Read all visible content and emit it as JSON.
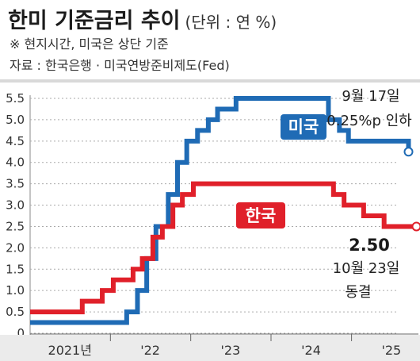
{
  "header": {
    "title": "한미 기준금리 추이",
    "unit": "(단위 : 연 %)",
    "note": "※ 현지시간, 미국은 상단 기준",
    "source": "자료 : 한국은행 · 미국연방준비제도(Fed)"
  },
  "chart_data": {
    "type": "line",
    "line_shape": "step",
    "title": "한미 기준금리 추이",
    "xlabel": "",
    "ylabel": "",
    "ylim": [
      0,
      5.5
    ],
    "yticks": [
      "0",
      "0.5",
      "1.0",
      "1.5",
      "2.0",
      "2.5",
      "3.0",
      "3.5",
      "4.0",
      "4.5",
      "5.0",
      "5.5"
    ],
    "xlim": [
      "2021-01-01",
      "2025-11-01"
    ],
    "xticks": [
      {
        "date": "2021-07-01",
        "label": "2021년"
      },
      {
        "date": "2022-07-01",
        "label": "'22"
      },
      {
        "date": "2023-07-01",
        "label": "'23"
      },
      {
        "date": "2024-07-01",
        "label": "'24"
      },
      {
        "date": "2025-07-01",
        "label": "'25"
      }
    ],
    "grid": "horizontal-dotted",
    "series": [
      {
        "name": "미국",
        "color": "#1f6bb5",
        "points": [
          {
            "x": "2021-01-01",
            "y": 0.25
          },
          {
            "x": "2022-03-16",
            "y": 0.5
          },
          {
            "x": "2022-05-04",
            "y": 1.0
          },
          {
            "x": "2022-06-15",
            "y": 1.75
          },
          {
            "x": "2022-07-27",
            "y": 2.5
          },
          {
            "x": "2022-09-21",
            "y": 3.25
          },
          {
            "x": "2022-11-02",
            "y": 4.0
          },
          {
            "x": "2022-12-14",
            "y": 4.5
          },
          {
            "x": "2023-02-01",
            "y": 4.75
          },
          {
            "x": "2023-03-22",
            "y": 5.0
          },
          {
            "x": "2023-05-03",
            "y": 5.25
          },
          {
            "x": "2023-07-26",
            "y": 5.5
          },
          {
            "x": "2024-09-18",
            "y": 5.0
          },
          {
            "x": "2024-11-07",
            "y": 4.75
          },
          {
            "x": "2024-12-18",
            "y": 4.5
          },
          {
            "x": "2025-09-17",
            "y": 4.25
          }
        ],
        "end_point": {
          "x": "2025-09-17",
          "y": 4.25
        }
      },
      {
        "name": "한국",
        "color": "#e0202a",
        "points": [
          {
            "x": "2021-01-01",
            "y": 0.5
          },
          {
            "x": "2021-08-26",
            "y": 0.75
          },
          {
            "x": "2021-11-25",
            "y": 1.0
          },
          {
            "x": "2022-01-14",
            "y": 1.25
          },
          {
            "x": "2022-04-14",
            "y": 1.5
          },
          {
            "x": "2022-05-26",
            "y": 1.75
          },
          {
            "x": "2022-07-13",
            "y": 2.25
          },
          {
            "x": "2022-08-25",
            "y": 2.5
          },
          {
            "x": "2022-10-12",
            "y": 3.0
          },
          {
            "x": "2022-11-24",
            "y": 3.25
          },
          {
            "x": "2023-01-13",
            "y": 3.5
          },
          {
            "x": "2024-10-11",
            "y": 3.25
          },
          {
            "x": "2024-11-28",
            "y": 3.0
          },
          {
            "x": "2025-02-25",
            "y": 2.75
          },
          {
            "x": "2025-05-29",
            "y": 2.5
          },
          {
            "x": "2025-10-23",
            "y": 2.5
          }
        ],
        "end_point": {
          "x": "2025-10-23",
          "y": 2.5
        }
      }
    ],
    "annotations": [
      {
        "series": "미국",
        "value": "4.25",
        "line1": "9월 17일",
        "line2": "0.25%p 인하"
      },
      {
        "series": "한국",
        "value": "2.50",
        "line1": "10월 23일",
        "line2": "동결"
      }
    ]
  }
}
